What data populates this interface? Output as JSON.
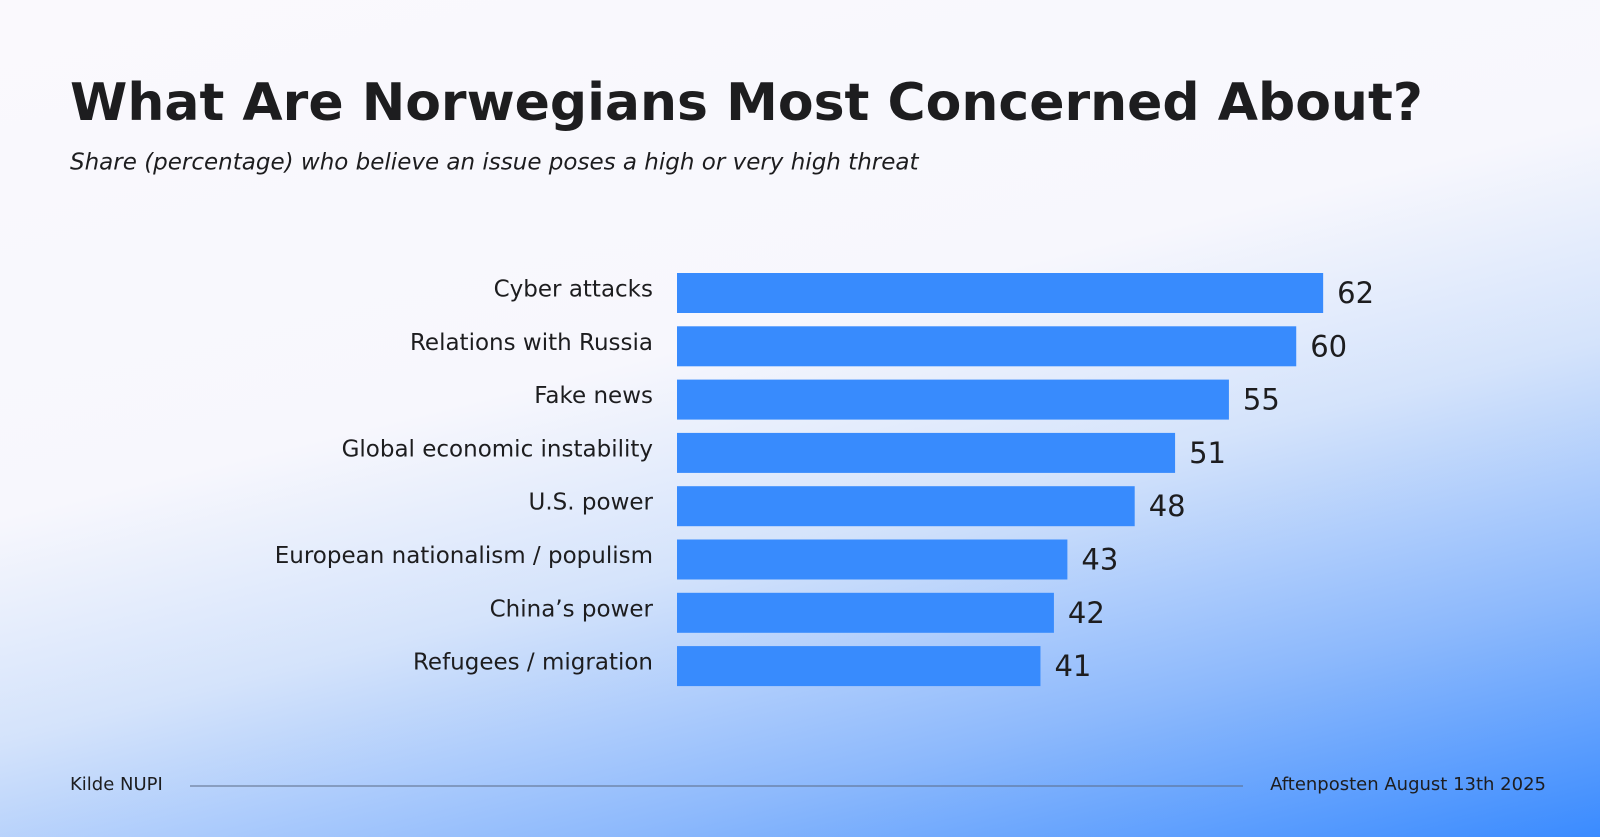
{
  "chart_data": {
    "type": "hbar",
    "title": "What Are Norwegians Most Concerned About?",
    "subtitle": "Share (percentage) who believe an issue poses a high or very high threat",
    "categories": [
      "Cyber attacks",
      "Relations with Russia",
      "Fake news",
      "Global economic instability",
      "U.S. power",
      "European nationalism / populism",
      "China’s power",
      "Refugees / migration"
    ],
    "values": [
      62,
      60,
      55,
      51,
      48,
      43,
      42,
      41
    ],
    "color": "#388bfd",
    "xlim": [
      14,
      66
    ],
    "source": "Kilde NUPI",
    "credit": "Aftenposten August 13th 2025"
  }
}
